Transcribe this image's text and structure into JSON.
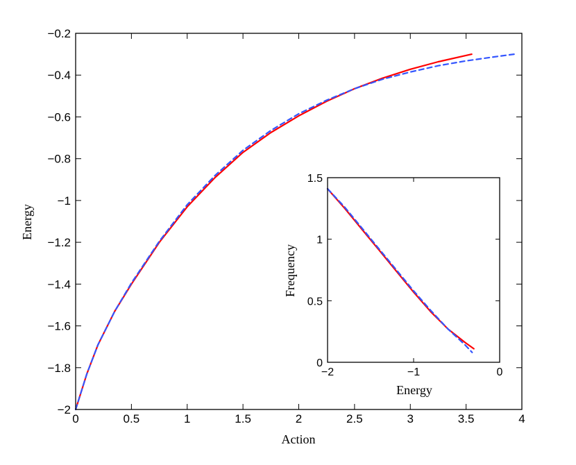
{
  "chart_data": [
    {
      "type": "line",
      "xlabel": "Action",
      "ylabel": "Energy",
      "xlim": [
        0,
        4
      ],
      "ylim": [
        -2,
        -0.2
      ],
      "xticks": [
        0,
        0.5,
        1,
        1.5,
        2,
        2.5,
        3,
        3.5,
        4
      ],
      "xtick_labels": [
        "0",
        "0.5",
        "1",
        "1.5",
        "2",
        "2.5",
        "3",
        "3.5",
        "4"
      ],
      "yticks": [
        -2,
        -1.8,
        -1.6,
        -1.4,
        -1.2,
        -1,
        -0.8,
        -0.6,
        -0.4,
        -0.2
      ],
      "ytick_labels": [
        "−2",
        "−1.8",
        "−1.6",
        "−1.4",
        "−1.2",
        "−1",
        "−0.8",
        "−0.6",
        "−0.4",
        "−0.2"
      ],
      "grid": false,
      "series": [
        {
          "color": "#ff0000",
          "style": "solid",
          "x": [
            0,
            0.1,
            0.2,
            0.35,
            0.5,
            0.75,
            1.0,
            1.25,
            1.5,
            1.75,
            2.0,
            2.25,
            2.5,
            2.75,
            3.0,
            3.25,
            3.55
          ],
          "y": [
            -2,
            -1.83,
            -1.69,
            -1.53,
            -1.4,
            -1.2,
            -1.03,
            -0.89,
            -0.77,
            -0.675,
            -0.595,
            -0.525,
            -0.465,
            -0.415,
            -0.372,
            -0.336,
            -0.3
          ]
        },
        {
          "color": "#3355ff",
          "style": "dashed",
          "x": [
            0,
            0.1,
            0.2,
            0.35,
            0.5,
            0.75,
            1.0,
            1.25,
            1.5,
            1.75,
            2.0,
            2.25,
            2.5,
            2.75,
            3.0,
            3.25,
            3.5,
            3.75,
            3.93
          ],
          "y": [
            -2,
            -1.83,
            -1.69,
            -1.53,
            -1.395,
            -1.195,
            -1.02,
            -0.88,
            -0.76,
            -0.665,
            -0.585,
            -0.52,
            -0.465,
            -0.42,
            -0.385,
            -0.355,
            -0.332,
            -0.313,
            -0.3
          ]
        }
      ]
    },
    {
      "type": "line",
      "xlabel": "Energy",
      "ylabel": "Frequency",
      "xlim": [
        -2,
        0
      ],
      "ylim": [
        0,
        1.5
      ],
      "xticks": [
        -2,
        -1,
        0
      ],
      "xtick_labels": [
        "−2",
        "−1",
        "0"
      ],
      "yticks": [
        0,
        0.5,
        1,
        1.5
      ],
      "ytick_labels": [
        "0",
        "0.5",
        "1",
        "1.5"
      ],
      "grid": false,
      "series": [
        {
          "color": "#ff0000",
          "style": "solid",
          "x": [
            -2,
            -1.8,
            -1.6,
            -1.4,
            -1.2,
            -1.0,
            -0.8,
            -0.6,
            -0.4,
            -0.3
          ],
          "y": [
            1.41,
            1.25,
            1.08,
            0.91,
            0.74,
            0.57,
            0.41,
            0.27,
            0.16,
            0.11
          ]
        },
        {
          "color": "#3355ff",
          "style": "dashed",
          "x": [
            -2,
            -1.8,
            -1.6,
            -1.4,
            -1.2,
            -1.0,
            -0.8,
            -0.6,
            -0.4,
            -0.32
          ],
          "y": [
            1.41,
            1.26,
            1.09,
            0.92,
            0.75,
            0.58,
            0.42,
            0.27,
            0.14,
            0.08
          ]
        }
      ]
    }
  ]
}
